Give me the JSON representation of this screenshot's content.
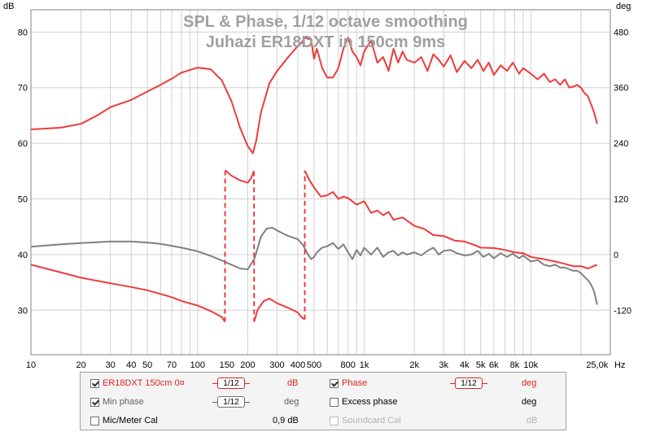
{
  "chart_data": {
    "type": "line",
    "title": "SPL & Phase, 1/12 octave smoothing",
    "subtitle": "Juhazi ER18DXT in 150cm 9ms",
    "left_axis": {
      "unit": "dB",
      "range": [
        22,
        84
      ],
      "ticks": [
        30,
        40,
        50,
        60,
        70,
        80
      ],
      "tick_labels": [
        "30",
        "40",
        "50",
        "60",
        "70",
        "80"
      ]
    },
    "right_axis": {
      "unit": "deg",
      "ticks": [
        -120,
        0,
        120,
        240,
        360,
        480
      ],
      "tick_labels": [
        "-120",
        "0",
        "120",
        "240",
        "360",
        "480"
      ]
    },
    "x_axis": {
      "scale": "log",
      "unit": "Hz",
      "range": [
        10,
        30000
      ],
      "label_values": [
        10,
        20,
        30,
        40,
        50,
        70,
        100,
        150,
        200,
        300,
        400,
        500,
        800,
        1000,
        2000,
        3000,
        4000,
        5000,
        6000,
        8000,
        10000,
        25000
      ],
      "tick_labels": [
        "10",
        "20",
        "30",
        "40",
        "50",
        "70",
        "100",
        "150",
        "200",
        "300",
        "400",
        "500",
        "800",
        "1k",
        "2k",
        "3k",
        "4k",
        "5k",
        "6k",
        "8k",
        "10k",
        "25,0k"
      ],
      "unit_label": "Hz"
    },
    "grid": true,
    "series": [
      {
        "name": "ER18DXT 150cm 0¤",
        "axis": "left",
        "color": "#ee3b3b",
        "x": [
          10,
          15,
          20,
          25,
          30,
          40,
          50,
          60,
          70,
          80,
          100,
          120,
          140,
          160,
          180,
          200,
          215,
          225,
          240,
          270,
          300,
          350,
          400,
          420,
          440,
          480,
          500,
          520,
          560,
          600,
          650,
          700,
          750,
          800,
          850,
          900,
          950,
          1000,
          1100,
          1200,
          1300,
          1400,
          1500,
          1600,
          1700,
          1800,
          2000,
          2200,
          2400,
          2600,
          2800,
          3000,
          3300,
          3600,
          4000,
          4400,
          4800,
          5200,
          5600,
          6000,
          6600,
          7200,
          7800,
          8500,
          9000,
          10000,
          11000,
          12000,
          13000,
          14000,
          15000,
          16000,
          17000,
          18000,
          19000,
          20000,
          21000,
          22000,
          23000,
          24000,
          25000
        ],
        "y": [
          62.5,
          62.8,
          63.5,
          65.0,
          66.5,
          67.8,
          69.3,
          70.5,
          71.6,
          72.7,
          73.6,
          73.3,
          71.3,
          67.5,
          62.8,
          59.5,
          58.2,
          60.5,
          65.5,
          70.8,
          73.0,
          75.5,
          77.5,
          78.0,
          79.0,
          78.6,
          75.2,
          77.0,
          73.5,
          71.8,
          71.8,
          73.5,
          77.0,
          79.0,
          76.5,
          75.5,
          74.0,
          76.5,
          78.5,
          74.5,
          75.5,
          73.0,
          77.0,
          74.5,
          76.5,
          75.0,
          74.5,
          75.5,
          73.0,
          76.0,
          75.0,
          73.8,
          75.8,
          72.8,
          74.8,
          73.5,
          75.0,
          73.0,
          74.5,
          72.3,
          74.0,
          73.0,
          74.5,
          72.5,
          73.5,
          72.5,
          71.5,
          72.5,
          71.0,
          71.5,
          70.5,
          71.5,
          70.0,
          70.2,
          70.5,
          70.0,
          69.0,
          68.5,
          67.0,
          65.5,
          63.5
        ]
      },
      {
        "name": "Phase",
        "axis": "right",
        "color": "#ee3b3b",
        "dashed_jumps": true,
        "x": [
          10,
          15,
          20,
          30,
          40,
          50,
          60,
          70,
          80,
          100,
          120,
          140,
          146,
          146.5,
          160,
          180,
          200,
          210,
          218,
          218.5,
          230,
          250,
          270,
          300,
          350,
          400,
          420,
          440,
          440.5,
          470,
          500,
          550,
          600,
          650,
          700,
          750,
          800,
          900,
          1000,
          1100,
          1200,
          1300,
          1400,
          1500,
          1700,
          2000,
          2300,
          2600,
          3000,
          3500,
          4000,
          4500,
          5000,
          6000,
          7000,
          8000,
          9000,
          10000,
          12000,
          14000,
          16000,
          18000,
          20000,
          22000,
          25000
        ],
        "y": [
          -22,
          -38,
          -50,
          -62,
          -70,
          -77,
          -85,
          -92,
          -100,
          -110,
          -122,
          -135,
          -145,
          182,
          170,
          160,
          155,
          165,
          180,
          -145,
          -118,
          -100,
          -95,
          -105,
          -115,
          -125,
          -135,
          -140,
          181,
          160,
          145,
          125,
          128,
          135,
          120,
          125,
          122,
          108,
          115,
          90,
          95,
          85,
          92,
          75,
          80,
          62,
          55,
          42,
          40,
          30,
          28,
          22,
          15,
          14,
          10,
          5,
          3,
          -5,
          -10,
          -15,
          -20,
          -25,
          -25,
          -30,
          -22
        ]
      },
      {
        "name": "Min phase",
        "axis": "right",
        "color": "#808080",
        "x": [
          10,
          15,
          20,
          30,
          40,
          50,
          60,
          70,
          80,
          100,
          120,
          140,
          160,
          180,
          200,
          220,
          240,
          260,
          280,
          300,
          350,
          400,
          430,
          460,
          480,
          500,
          520,
          560,
          600,
          650,
          700,
          750,
          800,
          850,
          900,
          950,
          1000,
          1100,
          1200,
          1300,
          1400,
          1500,
          1600,
          1700,
          1800,
          2000,
          2200,
          2400,
          2600,
          2800,
          3000,
          3300,
          3600,
          4000,
          4400,
          4800,
          5200,
          5600,
          6000,
          6600,
          7200,
          7800,
          8500,
          9000,
          10000,
          11000,
          12000,
          13000,
          14000,
          15000,
          16000,
          17000,
          18000,
          19000,
          20000,
          21000,
          22000,
          23000,
          24000,
          25000
        ],
        "y": [
          17,
          22,
          25,
          28,
          28,
          26,
          23,
          19,
          15,
          7,
          -3,
          -13,
          -22,
          -30,
          -32,
          -8,
          38,
          56,
          58,
          52,
          40,
          33,
          20,
          0,
          -10,
          -5,
          5,
          15,
          18,
          25,
          12,
          22,
          5,
          -10,
          10,
          -2,
          15,
          0,
          15,
          -5,
          5,
          8,
          -2,
          5,
          0,
          5,
          -2,
          8,
          15,
          0,
          8,
          10,
          3,
          -2,
          0,
          8,
          -5,
          2,
          -8,
          3,
          -5,
          2,
          -8,
          -2,
          -15,
          -12,
          -22,
          -25,
          -22,
          -28,
          -28,
          -32,
          -35,
          -35,
          -40,
          -48,
          -55,
          -65,
          -80,
          -108
        ]
      }
    ],
    "legend": {
      "rows": [
        [
          {
            "checked": true,
            "label": "ER18DXT 150cm 0¤",
            "smoothing": "1/12",
            "unit": "dB",
            "color": "#e02020"
          },
          {
            "checked": true,
            "label": "Phase",
            "smoothing": "1/12",
            "unit": "deg",
            "color": "#e02020"
          }
        ],
        [
          {
            "checked": true,
            "label": "Min phase",
            "smoothing": "1/12",
            "unit": "deg",
            "color": "#606060"
          },
          {
            "checked": false,
            "label": "Excess phase",
            "unit": "deg",
            "color": "#000000"
          }
        ],
        [
          {
            "checked": false,
            "label": "Mic/Meter Cal",
            "value": "0,9 dB",
            "color": "#000000"
          },
          {
            "checked": false,
            "label": "Soundcard Cal",
            "unit": "dB",
            "color": "#b0b0b0",
            "disabled": true
          }
        ]
      ]
    }
  }
}
